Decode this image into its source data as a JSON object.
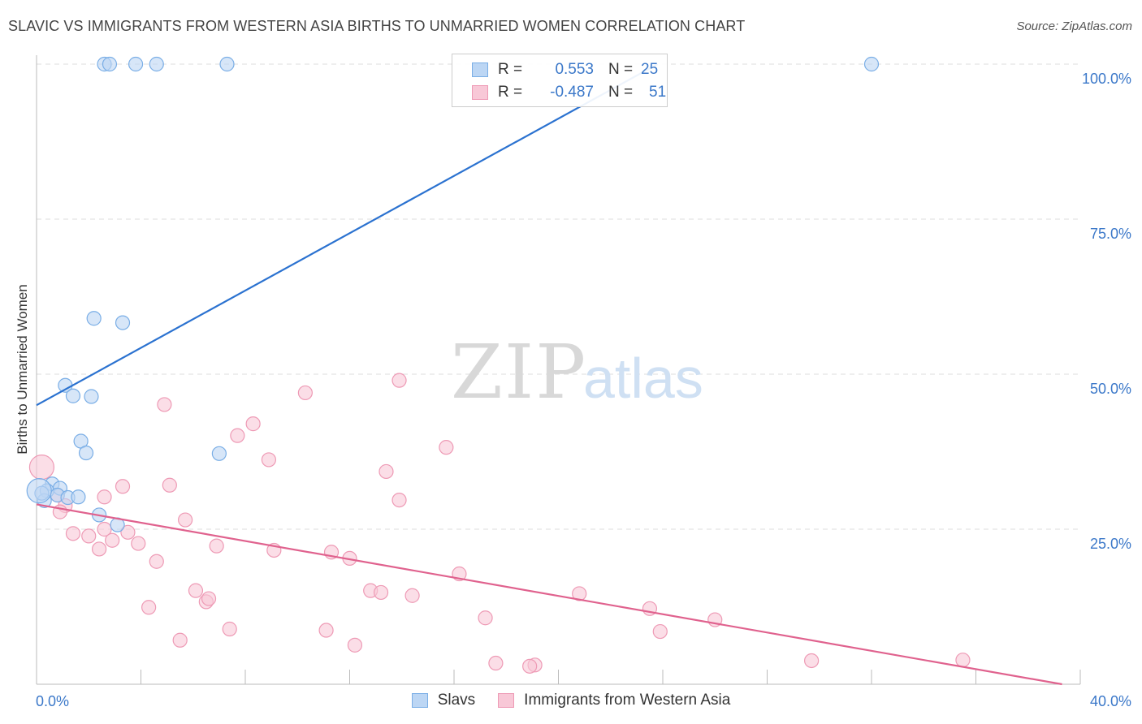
{
  "chart_data": {
    "type": "scatter",
    "title": "SLAVIC VS IMMIGRANTS FROM WESTERN ASIA BIRTHS TO UNMARRIED WOMEN CORRELATION CHART",
    "source": "Source: ZipAtlas.com",
    "xlabel": "",
    "ylabel": "Births to Unmarried Women",
    "xlim": [
      0,
      40
    ],
    "ylim": [
      0,
      100
    ],
    "x_tick_labels": [
      {
        "value": 0,
        "label": "0.0%"
      },
      {
        "value": 40,
        "label": "40.0%"
      }
    ],
    "y_tick_labels": [
      {
        "value": 25,
        "label": "25.0%"
      },
      {
        "value": 50,
        "label": "50.0%"
      },
      {
        "value": 75,
        "label": "75.0%"
      },
      {
        "value": 100,
        "label": "100.0%"
      }
    ],
    "watermark": {
      "part1": "ZIP",
      "part2": "atlas"
    },
    "stats_legend": [
      {
        "series": "Slavs",
        "r_label": "R =",
        "r_value": "0.553",
        "n_label": "N =",
        "n_value": "25"
      },
      {
        "series": "Immigrants from Western Asia",
        "r_label": "R =",
        "r_value": "-0.487",
        "n_label": "N =",
        "n_value": "51"
      }
    ],
    "series": [
      {
        "name": "Slavs",
        "color": "#7aaee6",
        "fill": "#bcd6f4",
        "line_color": "#2b72d0",
        "trend": {
          "x": [
            0,
            23.8
          ],
          "y": [
            45,
            100
          ]
        },
        "points": [
          [
            2.6,
            100
          ],
          [
            2.8,
            100
          ],
          [
            3.8,
            100
          ],
          [
            4.6,
            100
          ],
          [
            7.3,
            100
          ],
          [
            32.0,
            100
          ],
          [
            2.2,
            59.0
          ],
          [
            3.3,
            58.3
          ],
          [
            1.1,
            48.2
          ],
          [
            1.4,
            46.5
          ],
          [
            2.1,
            46.4
          ],
          [
            1.7,
            39.2
          ],
          [
            1.9,
            37.3
          ],
          [
            7.0,
            37.2
          ],
          [
            0.6,
            32.3
          ],
          [
            0.9,
            31.6
          ],
          [
            0.4,
            31.2
          ],
          [
            0.8,
            30.5
          ],
          [
            1.2,
            30.1
          ],
          [
            1.6,
            30.2
          ],
          [
            0.3,
            29.6
          ],
          [
            0.2,
            30.8
          ],
          [
            2.4,
            27.3
          ],
          [
            3.1,
            25.7
          ],
          [
            0.1,
            31.2
          ]
        ]
      },
      {
        "name": "Immigrants from Western Asia",
        "color": "#ee9ab5",
        "fill": "#f8c8d7",
        "line_color": "#e0628e",
        "trend": {
          "x": [
            0,
            39.3
          ],
          "y": [
            29,
            0
          ]
        },
        "points": [
          [
            0.2,
            35.0
          ],
          [
            0.8,
            30.5
          ],
          [
            1.1,
            28.8
          ],
          [
            0.9,
            27.8
          ],
          [
            2.6,
            30.2
          ],
          [
            3.3,
            31.9
          ],
          [
            4.9,
            45.1
          ],
          [
            5.1,
            32.1
          ],
          [
            5.7,
            26.5
          ],
          [
            7.7,
            40.1
          ],
          [
            8.3,
            42.0
          ],
          [
            8.9,
            36.2
          ],
          [
            10.3,
            47.0
          ],
          [
            13.9,
            49.0
          ],
          [
            13.4,
            34.3
          ],
          [
            13.9,
            29.7
          ],
          [
            15.7,
            38.2
          ],
          [
            1.4,
            24.3
          ],
          [
            2.0,
            23.9
          ],
          [
            2.4,
            21.8
          ],
          [
            2.6,
            25.0
          ],
          [
            2.9,
            23.2
          ],
          [
            3.5,
            24.5
          ],
          [
            3.9,
            22.7
          ],
          [
            4.6,
            19.8
          ],
          [
            6.9,
            22.3
          ],
          [
            9.1,
            21.6
          ],
          [
            11.3,
            21.3
          ],
          [
            12.0,
            20.3
          ],
          [
            16.2,
            17.8
          ],
          [
            12.8,
            15.1
          ],
          [
            13.2,
            14.8
          ],
          [
            14.4,
            14.3
          ],
          [
            20.8,
            14.6
          ],
          [
            6.1,
            15.1
          ],
          [
            6.5,
            13.3
          ],
          [
            6.6,
            13.8
          ],
          [
            4.3,
            12.4
          ],
          [
            11.1,
            8.7
          ],
          [
            7.4,
            8.9
          ],
          [
            17.2,
            10.7
          ],
          [
            23.5,
            12.2
          ],
          [
            23.9,
            8.5
          ],
          [
            26.0,
            10.4
          ],
          [
            5.5,
            7.1
          ],
          [
            12.2,
            6.3
          ],
          [
            17.6,
            3.4
          ],
          [
            19.1,
            3.1
          ],
          [
            18.9,
            2.9
          ],
          [
            29.7,
            3.8
          ],
          [
            35.5,
            3.9
          ]
        ]
      }
    ]
  }
}
